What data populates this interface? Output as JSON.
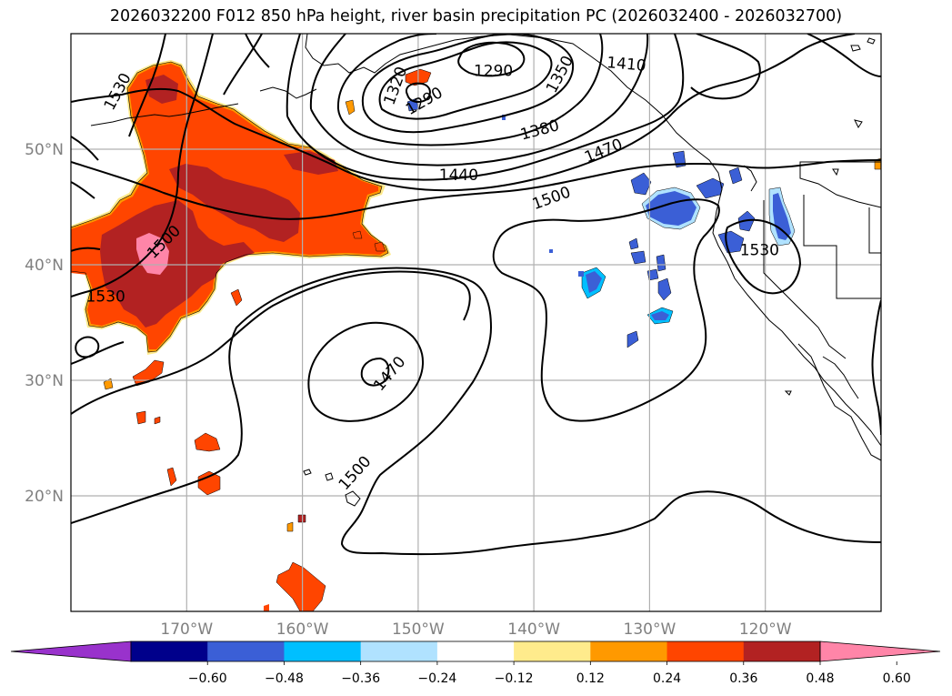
{
  "title": "2026032200 F012 850 hPa height, river basin precipitation PC (2026032400 - 2026032700)",
  "colors": {
    "contour": "#000000",
    "grid": "#b0b0b0",
    "coast": "#000000",
    "positive_fill": [
      "#ffeb8c",
      "#ff9900",
      "#ff4500",
      "#b22222",
      "#ff85a8"
    ],
    "negative_fill": [
      "#b0e2ff",
      "#00bfff",
      "#3b5fd6",
      "#00008b",
      "#9932cc"
    ]
  },
  "map": {
    "projection": "PlateCarree",
    "lon_range": [
      -180,
      -110
    ],
    "lat_range": [
      10,
      60
    ],
    "x_ticks": [
      {
        "lon": -170,
        "label": "170°W"
      },
      {
        "lon": -160,
        "label": "160°W"
      },
      {
        "lon": -150,
        "label": "150°W"
      },
      {
        "lon": -140,
        "label": "140°W"
      },
      {
        "lon": -130,
        "label": "130°W"
      },
      {
        "lon": -120,
        "label": "120°W"
      }
    ],
    "y_ticks": [
      {
        "lat": 50,
        "label": "50°N"
      },
      {
        "lat": 40,
        "label": "40°N"
      },
      {
        "lat": 30,
        "label": "30°N"
      },
      {
        "lat": 20,
        "label": "20°N"
      }
    ],
    "contour_labels": [
      {
        "text": "1530",
        "lon": -176.0,
        "lat": 55.0,
        "rot": -62
      },
      {
        "text": "1320",
        "lon": -152.0,
        "lat": 55.5,
        "rot": -70
      },
      {
        "text": "1290",
        "lon": -143.5,
        "lat": 56.8,
        "rot": 0
      },
      {
        "text": "1290",
        "lon": -149.5,
        "lat": 54.2,
        "rot": -30
      },
      {
        "text": "1350",
        "lon": -137.8,
        "lat": 56.5,
        "rot": -62
      },
      {
        "text": "1410",
        "lon": -132.0,
        "lat": 57.4,
        "rot": 5
      },
      {
        "text": "1380",
        "lon": -139.5,
        "lat": 51.7,
        "rot": -15
      },
      {
        "text": "1470",
        "lon": -134.0,
        "lat": 49.9,
        "rot": -22
      },
      {
        "text": "1440",
        "lon": -146.5,
        "lat": 47.8,
        "rot": 0
      },
      {
        "text": "1500",
        "lon": -138.5,
        "lat": 45.8,
        "rot": -20
      },
      {
        "text": "1500",
        "lon": -172.0,
        "lat": 42.0,
        "rot": -45
      },
      {
        "text": "1530",
        "lon": -177.0,
        "lat": 37.3,
        "rot": 0
      },
      {
        "text": "1530",
        "lon": -120.5,
        "lat": 41.3,
        "rot": 0
      },
      {
        "text": "1470",
        "lon": -152.5,
        "lat": 30.6,
        "rot": -50
      },
      {
        "text": "1500",
        "lon": -155.5,
        "lat": 22.0,
        "rot": -48
      }
    ]
  },
  "colorbar": {
    "levels": [
      "-0.60",
      "-0.48",
      "-0.36",
      "-0.24",
      "-0.12",
      "0.12",
      "0.24",
      "0.36",
      "0.48",
      "0.60"
    ],
    "level_values": [
      -0.6,
      -0.48,
      -0.36,
      -0.24,
      -0.12,
      0.12,
      0.24,
      0.36,
      0.48,
      0.6
    ],
    "bins": [
      {
        "range": "< -0.60",
        "color": "#9932cc"
      },
      {
        "range": "-0.60 to -0.48",
        "color": "#00008b"
      },
      {
        "range": "-0.48 to -0.36",
        "color": "#3b5fd6"
      },
      {
        "range": "-0.36 to -0.24",
        "color": "#00bfff"
      },
      {
        "range": "-0.24 to -0.12",
        "color": "#b0e2ff"
      },
      {
        "range": "-0.12 to 0.12",
        "color": "#ffffff"
      },
      {
        "range": "0.12 to 0.24",
        "color": "#ffeb8c"
      },
      {
        "range": "0.24 to 0.36",
        "color": "#ff9900"
      },
      {
        "range": "0.36 to 0.48",
        "color": "#ff4500"
      },
      {
        "range": "0.48 to 0.60",
        "color": "#b22222"
      },
      {
        "range": "> 0.60",
        "color": "#ff85a8"
      }
    ]
  }
}
